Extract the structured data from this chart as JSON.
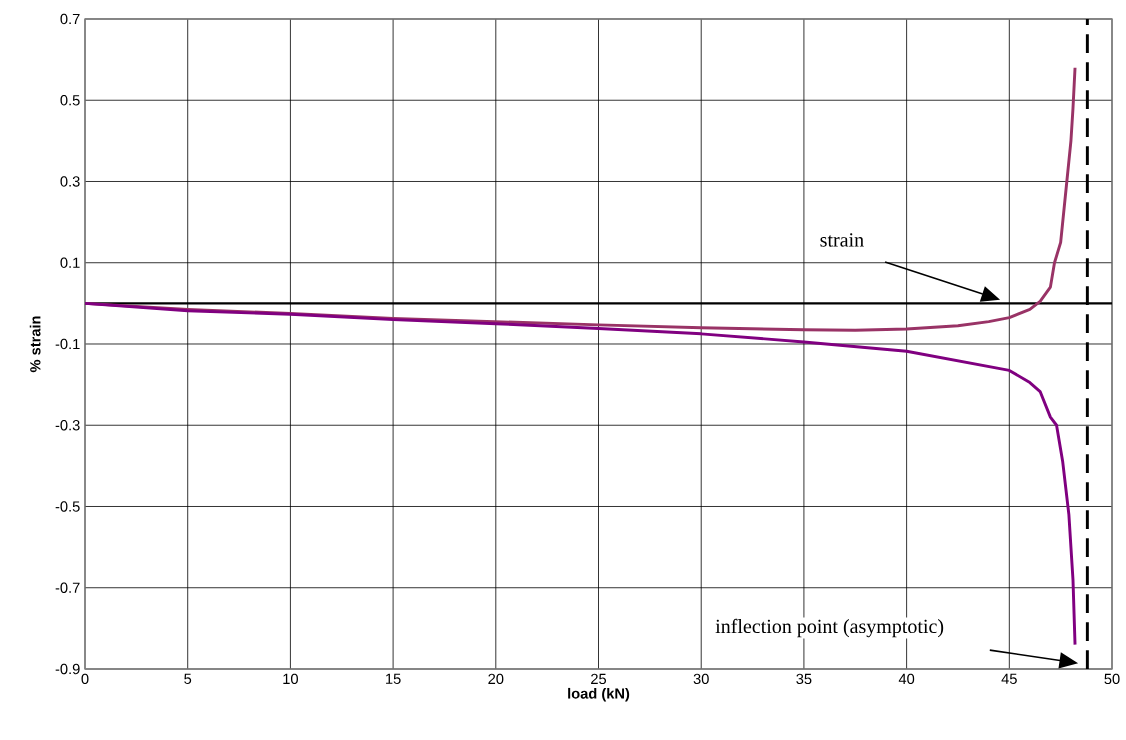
{
  "chart_data": {
    "type": "line",
    "xlabel": "load (kN)",
    "ylabel": "% strain",
    "xlim": [
      0,
      50
    ],
    "ylim": [
      -0.9,
      0.7
    ],
    "xticks": [
      0,
      5,
      10,
      15,
      20,
      25,
      30,
      35,
      40,
      45,
      50
    ],
    "yticks": [
      -0.9,
      -0.7,
      -0.5,
      -0.3,
      -0.1,
      0.1,
      0.3,
      0.5,
      0.7
    ],
    "grid": true,
    "marker": "none",
    "line_style": "solid",
    "series": [
      {
        "color": "#993366",
        "x": [
          0,
          5,
          10,
          15,
          20,
          25,
          30,
          35,
          37.5,
          40,
          42.5,
          44,
          45,
          46,
          46.5,
          47,
          47.2,
          47.5,
          47.8,
          48,
          48.1,
          48.2
        ],
        "values": [
          0,
          -0.015,
          -0.025,
          -0.037,
          -0.045,
          -0.053,
          -0.06,
          -0.065,
          -0.066,
          -0.063,
          -0.055,
          -0.045,
          -0.035,
          -0.015,
          0.005,
          0.04,
          0.1,
          0.15,
          0.3,
          0.4,
          0.48,
          0.58
        ]
      },
      {
        "color": "#800080",
        "x": [
          0,
          5,
          10,
          15,
          20,
          25,
          30,
          35,
          40,
          45,
          46,
          46.5,
          47,
          47.3,
          47.6,
          47.9,
          48.1,
          48.2
        ],
        "values": [
          0,
          -0.018,
          -0.027,
          -0.04,
          -0.05,
          -0.062,
          -0.075,
          -0.095,
          -0.118,
          -0.165,
          -0.195,
          -0.217,
          -0.28,
          -0.3,
          -0.39,
          -0.52,
          -0.68,
          -0.84
        ]
      }
    ],
    "ref_lines": [
      {
        "axis": "y",
        "value": 0,
        "color": "#000000",
        "line_style": "solid"
      },
      {
        "axis": "x",
        "value": 48.8,
        "color": "#000000",
        "line_style": "dashed"
      }
    ],
    "annotations": [
      "strain",
      "inflection point (asymptotic)"
    ]
  }
}
